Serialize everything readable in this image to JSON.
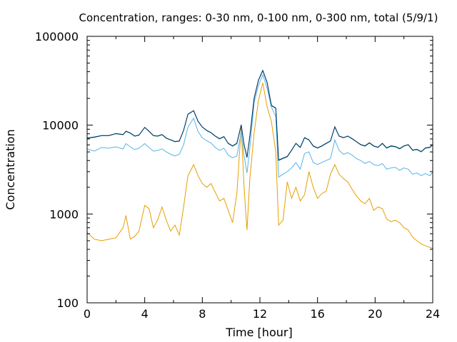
{
  "chart_data": {
    "type": "line",
    "title": "Concentration, ranges: 0-30 nm, 0-100 nm, 0-300 nm, total (5/9/1)",
    "xlabel": "Time [hour]",
    "ylabel": "Concentration",
    "xlim": [
      0,
      24
    ],
    "ylim": [
      100,
      100000
    ],
    "yscale": "log",
    "grid": false,
    "legend": "none",
    "x_ticks": [
      "0",
      "4",
      "8",
      "12",
      "16",
      "20",
      "24"
    ],
    "x_tick_values": [
      0,
      4,
      8,
      12,
      16,
      20,
      24
    ],
    "y_ticks": [
      "100",
      "1000",
      "10000",
      "100000"
    ],
    "y_tick_values": [
      100,
      1000,
      10000,
      100000
    ],
    "x": [
      0,
      0.5,
      1,
      1.5,
      2,
      2.5,
      2.7,
      3,
      3.3,
      3.6,
      4,
      4.3,
      4.6,
      4.9,
      5.2,
      5.5,
      5.8,
      6.1,
      6.4,
      6.7,
      7,
      7.4,
      7.7,
      8,
      8.3,
      8.6,
      8.9,
      9.2,
      9.5,
      9.8,
      10.1,
      10.4,
      10.7,
      10.9,
      11.1,
      11.3,
      11.6,
      11.9,
      12.2,
      12.5,
      12.8,
      13.1,
      13.3,
      13.6,
      13.9,
      14.2,
      14.5,
      14.8,
      15.1,
      15.4,
      15.7,
      16,
      16.3,
      16.6,
      16.9,
      17.2,
      17.5,
      17.8,
      18.1,
      18.4,
      18.7,
      19,
      19.3,
      19.6,
      19.9,
      20.2,
      20.5,
      20.8,
      21.1,
      21.4,
      21.7,
      22,
      22.3,
      22.6,
      22.9,
      23.2,
      23.5,
      23.8,
      24
    ],
    "series": [
      {
        "color": "#e69f00",
        "values": [
          620,
          520,
          500,
          520,
          540,
          700,
          960,
          520,
          560,
          640,
          1250,
          1150,
          700,
          860,
          1200,
          850,
          640,
          750,
          580,
          1200,
          2700,
          3600,
          2700,
          2200,
          2000,
          2200,
          1750,
          1400,
          1500,
          1100,
          800,
          1700,
          9500,
          2000,
          660,
          2500,
          8200,
          19000,
          30000,
          16000,
          11000,
          5000,
          750,
          850,
          2300,
          1500,
          2000,
          1400,
          1650,
          3000,
          2000,
          1500,
          1700,
          1800,
          2800,
          3600,
          2800,
          2500,
          2300,
          1900,
          1600,
          1400,
          1300,
          1500,
          1100,
          1200,
          1150,
          880,
          820,
          850,
          800,
          700,
          660,
          550,
          500,
          460,
          440,
          420,
          410
        ]
      },
      {
        "color": "#56b4e9",
        "values": [
          5400,
          5100,
          5600,
          5500,
          5700,
          5400,
          6200,
          5700,
          5300,
          5500,
          6200,
          5600,
          5100,
          5200,
          5400,
          5000,
          4700,
          4500,
          4700,
          6000,
          9500,
          12000,
          8500,
          7200,
          6700,
          6300,
          5600,
          5200,
          5500,
          4600,
          4300,
          4500,
          8400,
          4500,
          2900,
          5500,
          18000,
          28000,
          37000,
          26000,
          16000,
          12500,
          2600,
          2800,
          3000,
          3300,
          3800,
          3200,
          4800,
          5000,
          3800,
          3600,
          3800,
          4000,
          4200,
          6800,
          5200,
          4700,
          4900,
          4600,
          4200,
          4000,
          3700,
          3900,
          3600,
          3500,
          3700,
          3200,
          3300,
          3350,
          3100,
          3300,
          3200,
          2800,
          2900,
          2700,
          2850,
          2700,
          2950
        ]
      },
      {
        "color": "#009e73",
        "values": [
          7100,
          7300,
          7600,
          7600,
          8000,
          7800,
          8500,
          8100,
          7500,
          7700,
          9400,
          8500,
          7600,
          7500,
          7800,
          7100,
          6800,
          6500,
          6600,
          8700,
          13200,
          14500,
          11000,
          9500,
          8700,
          8200,
          7500,
          7000,
          7400,
          6200,
          5800,
          6200,
          10000,
          6000,
          4300,
          7500,
          20000,
          32000,
          41000,
          30000,
          16500,
          15500,
          4000,
          4200,
          4400,
          5200,
          6200,
          5600,
          7200,
          6800,
          5800,
          5500,
          5800,
          6200,
          6600,
          9500,
          7500,
          7200,
          7500,
          7000,
          6500,
          6000,
          5800,
          6300,
          5800,
          5600,
          6200,
          5500,
          5800,
          5700,
          5400,
          5800,
          6000,
          5200,
          5300,
          5000,
          5500,
          5600,
          6000
        ]
      },
      {
        "color": "#0b2e6e",
        "values": [
          7150,
          7350,
          7650,
          7650,
          8050,
          7850,
          8550,
          8150,
          7550,
          7750,
          9450,
          8550,
          7650,
          7550,
          7850,
          7150,
          6850,
          6550,
          6650,
          8750,
          13300,
          14600,
          11100,
          9550,
          8750,
          8250,
          7550,
          7050,
          7450,
          6250,
          5850,
          6250,
          10100,
          6050,
          4350,
          7550,
          20200,
          32300,
          41400,
          30300,
          16700,
          15600,
          4050,
          4250,
          4450,
          5250,
          6250,
          5650,
          7250,
          6850,
          5850,
          5550,
          5850,
          6250,
          6650,
          9600,
          7550,
          7250,
          7550,
          7050,
          6550,
          6050,
          5850,
          6350,
          5850,
          5650,
          6250,
          5550,
          5850,
          5750,
          5450,
          5850,
          6050,
          5250,
          5350,
          5050,
          5550,
          5650,
          6050
        ]
      }
    ]
  }
}
